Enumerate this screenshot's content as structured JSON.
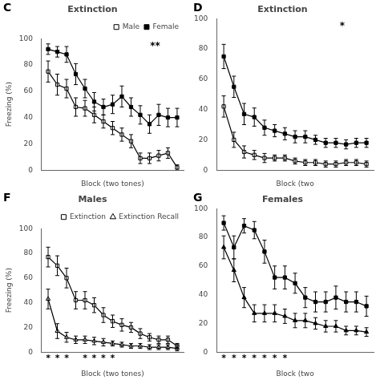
{
  "chart_data": [
    {
      "type": "line",
      "panel": "C",
      "title": "Extinction",
      "x_label": "Block (two tones)",
      "y_label": "Freezing (%)",
      "x": [
        1,
        2,
        3,
        4,
        5,
        6,
        7,
        8,
        9,
        10,
        11,
        12,
        13,
        14,
        15
      ],
      "xlim": [
        0.3,
        15.7
      ],
      "ylim": [
        0,
        100
      ],
      "yticks": [
        0,
        20,
        40,
        60,
        80,
        100
      ],
      "tick_labels": "y",
      "grid": false,
      "legend": "upper right",
      "annotations": [
        "**"
      ],
      "series": [
        {
          "name": "Male",
          "color": "#000000",
          "marker": "open-square",
          "line_style": "solid",
          "values": [
            75,
            65,
            62,
            48,
            47,
            42,
            37,
            32,
            27,
            22,
            9,
            9,
            11,
            13,
            2
          ],
          "errors": [
            8,
            8,
            7,
            7,
            6,
            6,
            5,
            5,
            5,
            5,
            4,
            4,
            4,
            4,
            2
          ]
        },
        {
          "name": "Female",
          "color": "#000000",
          "marker": "filled-square",
          "line_style": "solid",
          "values": [
            92,
            90,
            88,
            73,
            62,
            52,
            48,
            50,
            56,
            48,
            42,
            35,
            42,
            40,
            40
          ],
          "errors": [
            4,
            4,
            6,
            8,
            7,
            7,
            6,
            7,
            8,
            7,
            7,
            7,
            8,
            7,
            7
          ]
        }
      ]
    },
    {
      "type": "line",
      "panel": "D",
      "title": "Extinction",
      "x_label": "Block (two",
      "x": [
        1,
        2,
        3,
        4,
        5,
        6,
        7,
        8,
        9,
        10,
        11,
        12,
        13,
        14,
        15
      ],
      "xlim": [
        0.3,
        15.7
      ],
      "ylim": [
        0,
        100
      ],
      "yticks": [
        0,
        20,
        40,
        60,
        80,
        100
      ],
      "tick_labels": "y",
      "grid": false,
      "annotations": [
        "*"
      ],
      "series": [
        {
          "color": "#000000",
          "marker": "open-square",
          "line_style": "solid",
          "values": [
            42,
            20,
            12,
            10,
            8,
            8,
            8,
            6,
            5,
            5,
            4,
            4,
            5,
            5,
            4
          ],
          "errors": [
            7,
            5,
            4,
            3,
            3,
            2,
            2,
            2,
            2,
            2,
            2,
            2,
            2,
            2,
            2
          ]
        },
        {
          "color": "#000000",
          "marker": "filled-square",
          "line_style": "solid",
          "values": [
            75,
            55,
            37,
            35,
            28,
            26,
            24,
            22,
            22,
            20,
            18,
            18,
            17,
            18,
            18
          ],
          "errors": [
            8,
            7,
            7,
            6,
            5,
            4,
            4,
            4,
            4,
            3,
            3,
            3,
            3,
            3,
            3
          ]
        }
      ]
    },
    {
      "type": "line",
      "panel": "F",
      "title": "Males",
      "x_label": "Block (two tones)",
      "y_label": "Freezing (%)",
      "x": [
        1,
        2,
        3,
        4,
        5,
        6,
        7,
        8,
        9,
        10,
        11,
        12,
        13,
        14,
        15
      ],
      "xlim": [
        0.3,
        15.7
      ],
      "ylim": [
        0,
        100
      ],
      "yticks": [
        0,
        20,
        40,
        60,
        80,
        100
      ],
      "tick_labels": "y",
      "grid": false,
      "legend": "upper right",
      "significance": {
        "text": "*",
        "x": [
          1,
          2,
          3,
          5,
          6,
          7,
          8
        ]
      },
      "series": [
        {
          "name": "Extinction",
          "color": "#000000",
          "marker": "open-square",
          "line_style": "solid",
          "values": [
            77,
            70,
            60,
            42,
            42,
            38,
            30,
            25,
            22,
            20,
            15,
            12,
            10,
            10,
            5
          ],
          "errors": [
            8,
            8,
            8,
            7,
            7,
            6,
            6,
            5,
            5,
            4,
            4,
            3,
            3,
            3,
            2
          ]
        },
        {
          "name": "Extinction Recall",
          "color": "#000000",
          "marker": "open-triangle",
          "line_style": "solid",
          "values": [
            43,
            17,
            12,
            10,
            10,
            9,
            8,
            7,
            6,
            5,
            5,
            4,
            4,
            4,
            3
          ],
          "errors": [
            8,
            6,
            4,
            3,
            3,
            3,
            3,
            2,
            2,
            2,
            2,
            2,
            2,
            2,
            2
          ]
        }
      ]
    },
    {
      "type": "line",
      "panel": "G",
      "title": "Females",
      "x_label": "Block (two",
      "x": [
        1,
        2,
        3,
        4,
        5,
        6,
        7,
        8,
        9,
        10,
        11,
        12,
        13,
        14,
        15
      ],
      "xlim": [
        0.3,
        15.7
      ],
      "ylim": [
        0,
        100
      ],
      "yticks": [
        0,
        20,
        40,
        60,
        80,
        100
      ],
      "tick_labels": "y",
      "grid": false,
      "significance": {
        "text": "*",
        "x": [
          1,
          2,
          3,
          4,
          5,
          6,
          7
        ]
      },
      "series": [
        {
          "color": "#000000",
          "marker": "filled-square",
          "line_style": "solid",
          "values": [
            90,
            73,
            88,
            85,
            70,
            52,
            52,
            48,
            38,
            35,
            35,
            38,
            35,
            35,
            32
          ],
          "errors": [
            5,
            8,
            5,
            6,
            8,
            8,
            8,
            7,
            7,
            7,
            7,
            8,
            7,
            7,
            7
          ]
        },
        {
          "color": "#000000",
          "marker": "filled-triangle",
          "line_style": "solid",
          "values": [
            73,
            57,
            38,
            27,
            27,
            27,
            25,
            22,
            22,
            20,
            18,
            18,
            15,
            15,
            14
          ],
          "errors": [
            8,
            8,
            7,
            6,
            6,
            6,
            5,
            5,
            5,
            4,
            4,
            4,
            3,
            3,
            3
          ]
        }
      ]
    }
  ]
}
